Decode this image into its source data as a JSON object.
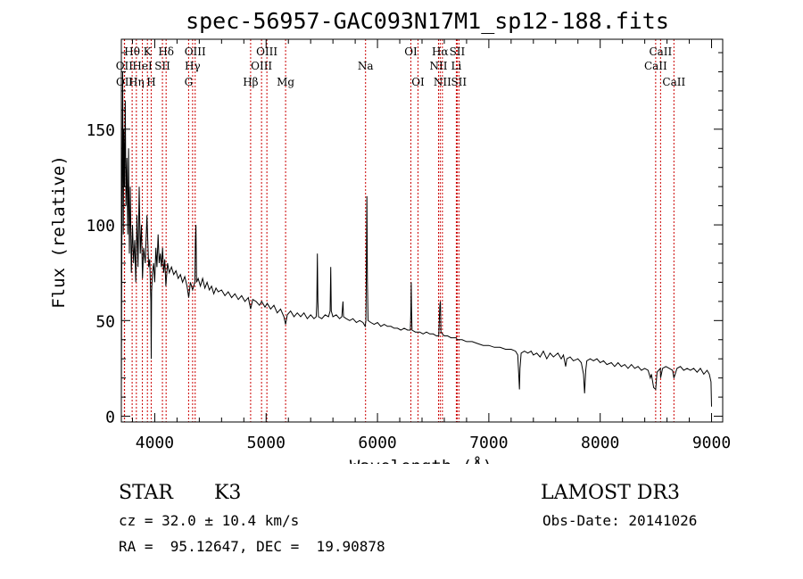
{
  "chart_data": {
    "type": "line",
    "title": "spec-56957-GAC093N17M1_sp12-188.fits",
    "xlabel": "Wavelength (Å)",
    "ylabel": "Flux (relative)",
    "xlim": [
      3700,
      9100
    ],
    "ylim": [
      -3,
      197
    ],
    "x_ticks": [
      4000,
      5000,
      6000,
      7000,
      8000,
      9000
    ],
    "y_ticks": [
      0,
      50,
      100,
      150
    ],
    "spectrum_points": [
      [
        3700,
        10
      ],
      [
        3706,
        105
      ],
      [
        3712,
        180
      ],
      [
        3718,
        95
      ],
      [
        3722,
        150
      ],
      [
        3728,
        120
      ],
      [
        3735,
        165
      ],
      [
        3742,
        110
      ],
      [
        3750,
        135
      ],
      [
        3758,
        95
      ],
      [
        3765,
        140
      ],
      [
        3772,
        85
      ],
      [
        3780,
        120
      ],
      [
        3790,
        75
      ],
      [
        3800,
        100
      ],
      [
        3810,
        80
      ],
      [
        3820,
        92
      ],
      [
        3830,
        70
      ],
      [
        3840,
        105
      ],
      [
        3850,
        78
      ],
      [
        3860,
        120
      ],
      [
        3870,
        85
      ],
      [
        3880,
        100
      ],
      [
        3890,
        72
      ],
      [
        3900,
        88
      ],
      [
        3915,
        80
      ],
      [
        3930,
        105
      ],
      [
        3945,
        78
      ],
      [
        3955,
        82
      ],
      [
        3965,
        60
      ],
      [
        3968,
        30
      ],
      [
        3972,
        65
      ],
      [
        3980,
        75
      ],
      [
        3990,
        80
      ],
      [
        4000,
        70
      ],
      [
        4010,
        88
      ],
      [
        4020,
        78
      ],
      [
        4030,
        95
      ],
      [
        4040,
        80
      ],
      [
        4050,
        85
      ],
      [
        4060,
        78
      ],
      [
        4070,
        88
      ],
      [
        4080,
        75
      ],
      [
        4090,
        82
      ],
      [
        4100,
        68
      ],
      [
        4115,
        80
      ],
      [
        4130,
        75
      ],
      [
        4150,
        78
      ],
      [
        4170,
        74
      ],
      [
        4190,
        76
      ],
      [
        4210,
        72
      ],
      [
        4230,
        74
      ],
      [
        4250,
        70
      ],
      [
        4270,
        73
      ],
      [
        4290,
        68
      ],
      [
        4305,
        62
      ],
      [
        4320,
        70
      ],
      [
        4340,
        66
      ],
      [
        4360,
        70
      ],
      [
        4365,
        92
      ],
      [
        4370,
        100
      ],
      [
        4375,
        70
      ],
      [
        4390,
        72
      ],
      [
        4410,
        68
      ],
      [
        4430,
        72
      ],
      [
        4450,
        67
      ],
      [
        4470,
        70
      ],
      [
        4490,
        66
      ],
      [
        4510,
        68
      ],
      [
        4530,
        64
      ],
      [
        4550,
        67
      ],
      [
        4570,
        65
      ],
      [
        4600,
        66
      ],
      [
        4630,
        63
      ],
      [
        4660,
        65
      ],
      [
        4690,
        62
      ],
      [
        4720,
        64
      ],
      [
        4750,
        61
      ],
      [
        4780,
        63
      ],
      [
        4810,
        60
      ],
      [
        4840,
        62
      ],
      [
        4861,
        56
      ],
      [
        4880,
        61
      ],
      [
        4910,
        60
      ],
      [
        4940,
        58
      ],
      [
        4960,
        60
      ],
      [
        4990,
        57
      ],
      [
        5010,
        59
      ],
      [
        5040,
        56
      ],
      [
        5070,
        58
      ],
      [
        5100,
        54
      ],
      [
        5130,
        56
      ],
      [
        5160,
        52
      ],
      [
        5175,
        48
      ],
      [
        5190,
        53
      ],
      [
        5220,
        55
      ],
      [
        5250,
        52
      ],
      [
        5280,
        54
      ],
      [
        5310,
        52
      ],
      [
        5340,
        54
      ],
      [
        5370,
        51
      ],
      [
        5400,
        53
      ],
      [
        5430,
        51
      ],
      [
        5450,
        52
      ],
      [
        5455,
        60
      ],
      [
        5460,
        85
      ],
      [
        5465,
        60
      ],
      [
        5470,
        52
      ],
      [
        5500,
        51
      ],
      [
        5530,
        53
      ],
      [
        5560,
        52
      ],
      [
        5575,
        55
      ],
      [
        5580,
        78
      ],
      [
        5585,
        55
      ],
      [
        5600,
        52
      ],
      [
        5630,
        53
      ],
      [
        5660,
        51
      ],
      [
        5680,
        52
      ],
      [
        5690,
        60
      ],
      [
        5695,
        52
      ],
      [
        5720,
        51
      ],
      [
        5750,
        50
      ],
      [
        5780,
        51
      ],
      [
        5810,
        49
      ],
      [
        5840,
        50
      ],
      [
        5870,
        49
      ],
      [
        5890,
        47
      ],
      [
        5896,
        50
      ],
      [
        5900,
        75
      ],
      [
        5905,
        115
      ],
      [
        5910,
        70
      ],
      [
        5915,
        50
      ],
      [
        5940,
        49
      ],
      [
        5970,
        48
      ],
      [
        6000,
        49
      ],
      [
        6030,
        47
      ],
      [
        6060,
        48
      ],
      [
        6090,
        47
      ],
      [
        6120,
        47
      ],
      [
        6150,
        46
      ],
      [
        6180,
        46
      ],
      [
        6210,
        45
      ],
      [
        6240,
        46
      ],
      [
        6270,
        45
      ],
      [
        6295,
        45
      ],
      [
        6300,
        55
      ],
      [
        6303,
        70
      ],
      [
        6306,
        55
      ],
      [
        6310,
        45
      ],
      [
        6340,
        44
      ],
      [
        6364,
        44
      ],
      [
        6380,
        44
      ],
      [
        6410,
        43
      ],
      [
        6440,
        44
      ],
      [
        6470,
        43
      ],
      [
        6500,
        43
      ],
      [
        6530,
        42
      ],
      [
        6550,
        42
      ],
      [
        6560,
        58
      ],
      [
        6565,
        60
      ],
      [
        6570,
        44
      ],
      [
        6583,
        43
      ],
      [
        6600,
        42
      ],
      [
        6630,
        42
      ],
      [
        6660,
        41
      ],
      [
        6690,
        41
      ],
      [
        6708,
        41
      ],
      [
        6716,
        40
      ],
      [
        6731,
        40
      ],
      [
        6760,
        40
      ],
      [
        6800,
        39
      ],
      [
        6850,
        39
      ],
      [
        6900,
        38
      ],
      [
        6950,
        37
      ],
      [
        7000,
        37
      ],
      [
        7050,
        36
      ],
      [
        7100,
        36
      ],
      [
        7150,
        35
      ],
      [
        7200,
        35
      ],
      [
        7240,
        34
      ],
      [
        7260,
        32
      ],
      [
        7270,
        20
      ],
      [
        7275,
        14
      ],
      [
        7280,
        25
      ],
      [
        7290,
        33
      ],
      [
        7320,
        34
      ],
      [
        7350,
        33
      ],
      [
        7380,
        34
      ],
      [
        7400,
        32
      ],
      [
        7430,
        33
      ],
      [
        7460,
        31
      ],
      [
        7490,
        34
      ],
      [
        7520,
        30
      ],
      [
        7550,
        33
      ],
      [
        7580,
        31
      ],
      [
        7620,
        33
      ],
      [
        7650,
        30
      ],
      [
        7670,
        32
      ],
      [
        7690,
        26
      ],
      [
        7700,
        30
      ],
      [
        7730,
        31
      ],
      [
        7760,
        29
      ],
      [
        7800,
        30
      ],
      [
        7830,
        28
      ],
      [
        7850,
        22
      ],
      [
        7860,
        12
      ],
      [
        7870,
        24
      ],
      [
        7880,
        29
      ],
      [
        7910,
        30
      ],
      [
        7940,
        29
      ],
      [
        7970,
        30
      ],
      [
        8000,
        28
      ],
      [
        8030,
        29
      ],
      [
        8060,
        27
      ],
      [
        8100,
        28
      ],
      [
        8130,
        26
      ],
      [
        8160,
        28
      ],
      [
        8190,
        26
      ],
      [
        8220,
        27
      ],
      [
        8250,
        25
      ],
      [
        8280,
        27
      ],
      [
        8310,
        25
      ],
      [
        8340,
        26
      ],
      [
        8370,
        24
      ],
      [
        8400,
        25
      ],
      [
        8430,
        24
      ],
      [
        8450,
        20
      ],
      [
        8460,
        22
      ],
      [
        8480,
        15
      ],
      [
        8498,
        14
      ],
      [
        8510,
        23
      ],
      [
        8540,
        25
      ],
      [
        8542,
        20
      ],
      [
        8560,
        25
      ],
      [
        8590,
        26
      ],
      [
        8620,
        25
      ],
      [
        8650,
        24
      ],
      [
        8662,
        20
      ],
      [
        8690,
        25
      ],
      [
        8720,
        26
      ],
      [
        8750,
        24
      ],
      [
        8780,
        25
      ],
      [
        8810,
        24
      ],
      [
        8840,
        25
      ],
      [
        8870,
        23
      ],
      [
        8900,
        25
      ],
      [
        8930,
        22
      ],
      [
        8960,
        24
      ],
      [
        8980,
        22
      ],
      [
        8995,
        18
      ],
      [
        9000,
        5
      ]
    ],
    "spectral_lines": [
      {
        "label": "Hθ",
        "wl": 3797,
        "row": 1
      },
      {
        "label": "OII",
        "wl": 3727,
        "row": 2
      },
      {
        "label": "OII",
        "wl": 3729,
        "row": 3
      },
      {
        "label": "K",
        "wl": 3934,
        "row": 1
      },
      {
        "label": "HeI",
        "wl": 3889,
        "row": 2
      },
      {
        "label": "Hη",
        "wl": 3835,
        "row": 3
      },
      {
        "label": "Hδ",
        "wl": 4102,
        "row": 1
      },
      {
        "label": "SII",
        "wl": 4069,
        "row": 2
      },
      {
        "label": "H",
        "wl": 3968,
        "row": 3
      },
      {
        "label": "OIII",
        "wl": 4363,
        "row": 1
      },
      {
        "label": "Hγ",
        "wl": 4340,
        "row": 2
      },
      {
        "label": "G",
        "wl": 4304,
        "row": 3
      },
      {
        "label": "OIII",
        "wl": 5007,
        "row": 1
      },
      {
        "label": "OIII",
        "wl": 4959,
        "row": 2
      },
      {
        "label": "Hβ",
        "wl": 4861,
        "row": 3
      },
      {
        "label": "Mg",
        "wl": 5175,
        "row": 3
      },
      {
        "label": "Na",
        "wl": 5893,
        "row": 2
      },
      {
        "label": "OI",
        "wl": 6300,
        "row": 1
      },
      {
        "label": "OI",
        "wl": 6364,
        "row": 3
      },
      {
        "label": "Hα",
        "wl": 6563,
        "row": 1
      },
      {
        "label": "NII",
        "wl": 6548,
        "row": 2
      },
      {
        "label": "NII",
        "wl": 6583,
        "row": 3
      },
      {
        "label": "SII",
        "wl": 6716,
        "row": 1
      },
      {
        "label": "Li",
        "wl": 6708,
        "row": 2
      },
      {
        "label": "SII",
        "wl": 6731,
        "row": 3
      },
      {
        "label": "CaII",
        "wl": 8542,
        "row": 1
      },
      {
        "label": "CaII",
        "wl": 8498,
        "row": 2
      },
      {
        "label": "CaII",
        "wl": 8662,
        "row": 3
      }
    ]
  },
  "info": {
    "class": "STAR",
    "subclass": "K3",
    "cz": "cz = 32.0 ± 10.4 km/s",
    "coords": "RA =  95.12647, DEC =  19.90878",
    "survey": "LAMOST DR3",
    "obs_date": "Obs-Date: 20141026"
  },
  "colors": {
    "spectrum": "#000000",
    "line_marker": "#cc0000",
    "axes": "#000000"
  }
}
